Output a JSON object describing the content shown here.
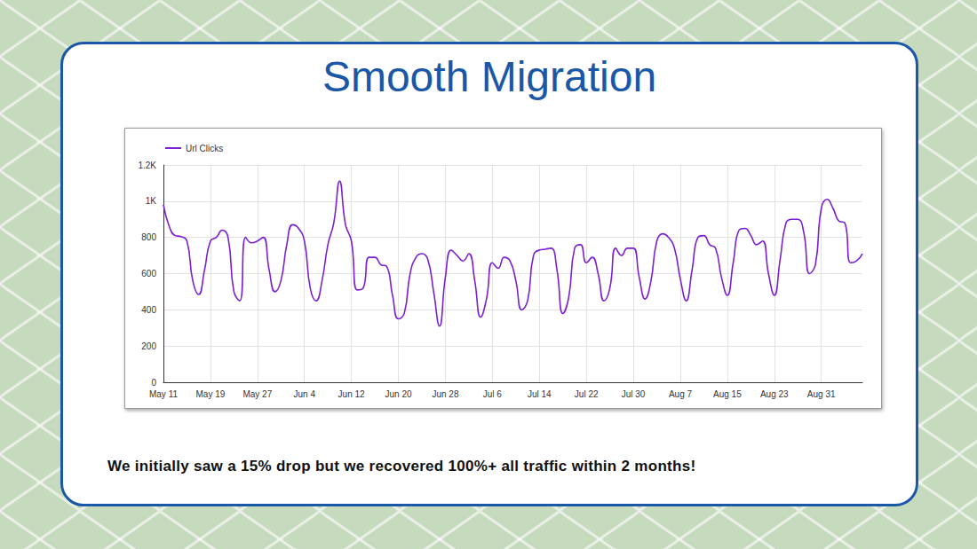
{
  "title": "Smooth Migration",
  "annotation": "We initially saw a 15% drop but we recovered 100%+ all traffic within 2 months!",
  "chart_data": {
    "type": "line",
    "categories": [
      "May 11",
      null,
      null,
      null,
      null,
      null,
      null,
      null,
      "May 19",
      null,
      null,
      null,
      null,
      null,
      null,
      null,
      "May 27",
      null,
      null,
      null,
      null,
      null,
      null,
      null,
      "Jun 4",
      null,
      null,
      null,
      null,
      null,
      null,
      null,
      "Jun 12",
      null,
      null,
      null,
      null,
      null,
      null,
      null,
      "Jun 20",
      null,
      null,
      null,
      null,
      null,
      null,
      null,
      "Jun 28",
      null,
      null,
      null,
      null,
      null,
      null,
      null,
      "Jul 6",
      null,
      null,
      null,
      null,
      null,
      null,
      null,
      "Jul 14",
      null,
      null,
      null,
      null,
      null,
      null,
      null,
      "Jul 22",
      null,
      null,
      null,
      null,
      null,
      null,
      null,
      "Jul 30",
      null,
      null,
      null,
      null,
      null,
      null,
      null,
      "Aug 7",
      null,
      null,
      null,
      null,
      null,
      null,
      null,
      "Aug 15",
      null,
      null,
      null,
      null,
      null,
      null,
      null,
      "Aug 23",
      null,
      null,
      null,
      null,
      null,
      null,
      null,
      "Aug 31",
      null,
      null,
      null,
      null,
      null,
      null,
      null
    ],
    "series": [
      {
        "name": "Url Clicks",
        "color": "#7c1fd4",
        "values": [
          980,
          860,
          810,
          805,
          780,
          560,
          485,
          620,
          780,
          800,
          840,
          800,
          500,
          450,
          800,
          770,
          780,
          800,
          620,
          500,
          560,
          760,
          870,
          850,
          780,
          520,
          450,
          560,
          760,
          880,
          1110,
          870,
          780,
          510,
          520,
          690,
          690,
          650,
          640,
          480,
          350,
          380,
          600,
          690,
          710,
          680,
          500,
          310,
          580,
          730,
          700,
          670,
          710,
          560,
          360,
          460,
          660,
          630,
          690,
          670,
          560,
          400,
          450,
          700,
          730,
          735,
          740,
          620,
          380,
          470,
          740,
          760,
          660,
          690,
          600,
          450,
          520,
          740,
          700,
          740,
          740,
          580,
          460,
          560,
          780,
          820,
          800,
          740,
          570,
          450,
          620,
          800,
          810,
          760,
          740,
          580,
          480,
          660,
          840,
          850,
          810,
          760,
          780,
          600,
          480,
          680,
          880,
          900,
          900,
          830,
          600,
          650,
          960,
          1010,
          960,
          890,
          880,
          660,
          670,
          710
        ]
      }
    ],
    "ylim": [
      0,
      1200
    ],
    "yticks": [
      0,
      200,
      400,
      600,
      800,
      {
        "value": 1000,
        "label": "1K"
      },
      {
        "value": 1200,
        "label": "1.2K"
      }
    ],
    "grid": true,
    "legend": "top-left"
  }
}
